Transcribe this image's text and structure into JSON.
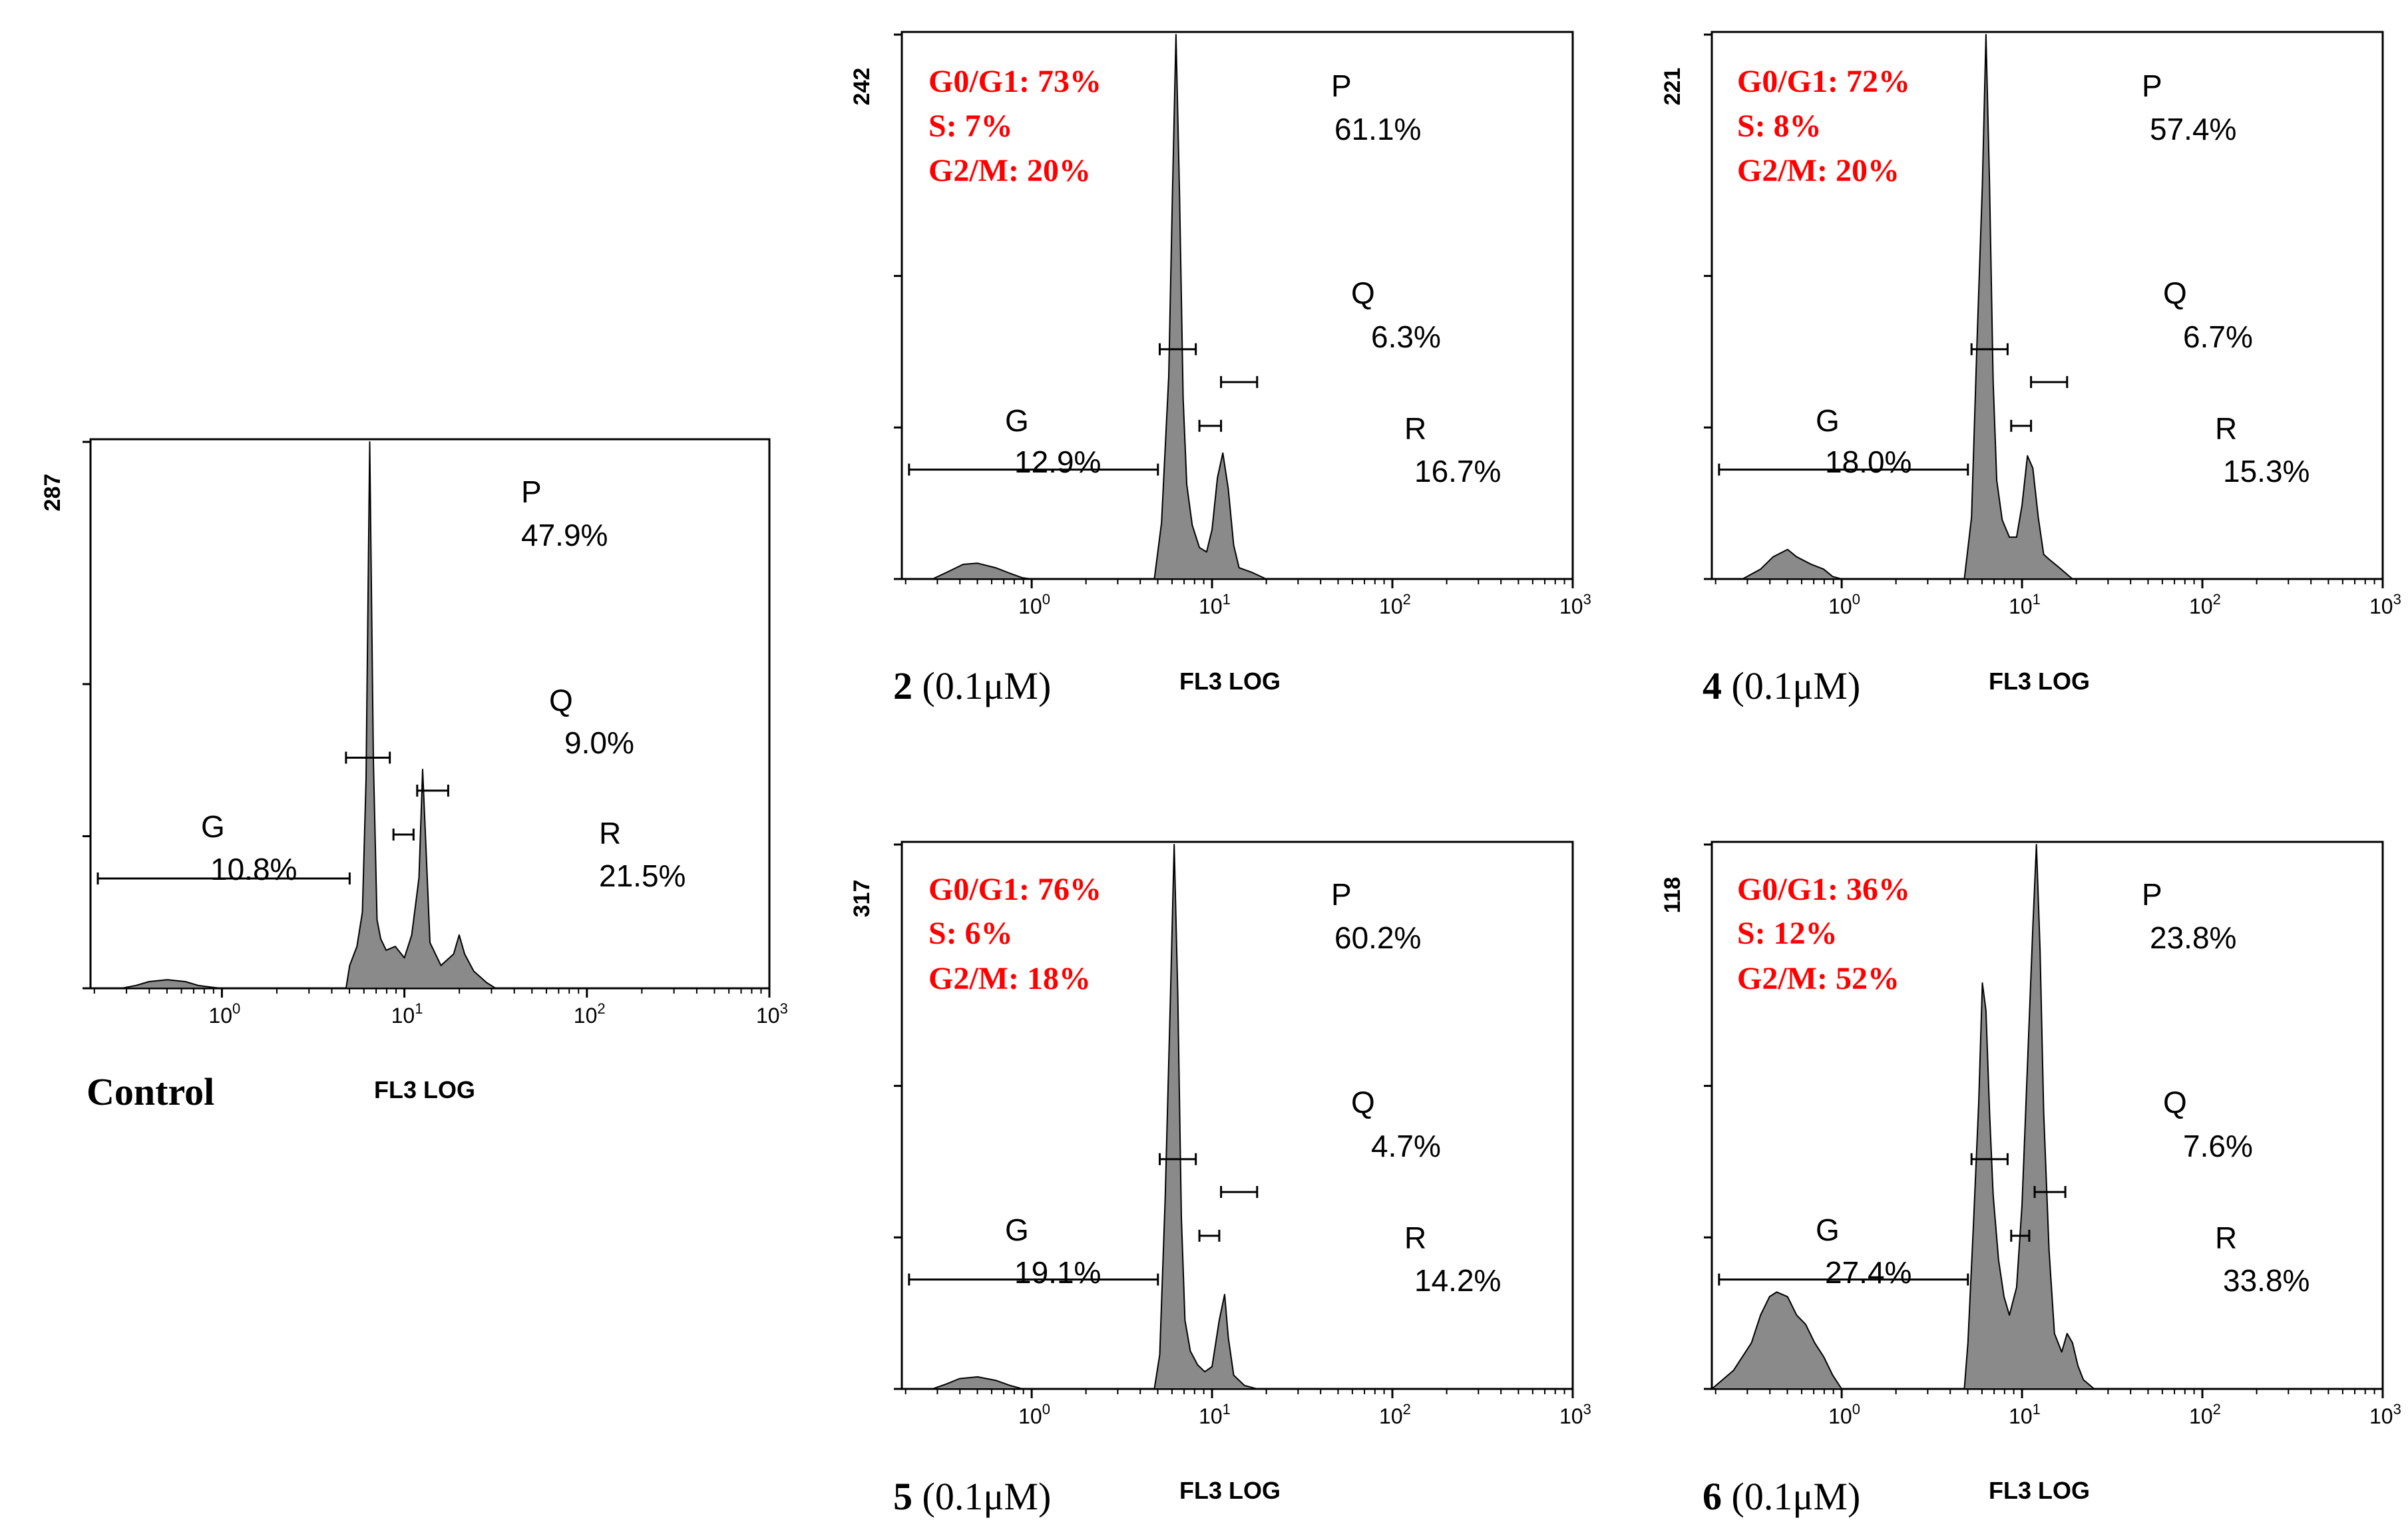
{
  "chart_data": [
    {
      "type": "area",
      "id": "control",
      "caption_bold": "Control",
      "caption_rest": "",
      "xlabel": "FL3 LOG",
      "ymax_label": "287",
      "ymax": 287,
      "xlim": [
        -0.72,
        3
      ],
      "x_tick_labels": [
        {
          "base": "10",
          "exp": "0"
        },
        {
          "base": "10",
          "exp": "1"
        },
        {
          "base": "10",
          "exp": "2"
        },
        {
          "base": "10",
          "exp": "3"
        }
      ],
      "phase_summary": [],
      "gates": [
        {
          "label": "P",
          "value": "47.9%"
        },
        {
          "label": "Q",
          "value": "9.0%"
        },
        {
          "label": "G",
          "value": "10.8%"
        },
        {
          "label": "R",
          "value": "21.5%"
        }
      ],
      "gate_ranges": {
        "G": [
          -0.68,
          0.7
        ],
        "P": [
          0.68,
          0.92
        ],
        "Q": [
          0.94,
          1.05
        ],
        "R": [
          1.07,
          1.24
        ]
      },
      "histogram": [
        [
          -0.72,
          0
        ],
        [
          -0.55,
          0
        ],
        [
          -0.47,
          1.5
        ],
        [
          -0.4,
          3.5
        ],
        [
          -0.3,
          4.5
        ],
        [
          -0.2,
          3.5
        ],
        [
          -0.13,
          1.5
        ],
        [
          -0.05,
          0.5
        ],
        [
          0.0,
          0
        ],
        [
          0.68,
          0
        ],
        [
          0.7,
          12
        ],
        [
          0.74,
          22
        ],
        [
          0.77,
          40
        ],
        [
          0.79,
          110
        ],
        [
          0.81,
          287
        ],
        [
          0.83,
          120
        ],
        [
          0.85,
          36
        ],
        [
          0.87,
          26
        ],
        [
          0.9,
          20
        ],
        [
          0.95,
          22
        ],
        [
          1.0,
          16
        ],
        [
          1.04,
          28
        ],
        [
          1.08,
          58
        ],
        [
          1.1,
          115
        ],
        [
          1.12,
          70
        ],
        [
          1.14,
          24
        ],
        [
          1.2,
          12
        ],
        [
          1.27,
          18
        ],
        [
          1.3,
          28
        ],
        [
          1.33,
          18
        ],
        [
          1.38,
          9
        ],
        [
          1.45,
          3
        ],
        [
          1.5,
          0
        ],
        [
          3,
          0
        ]
      ]
    },
    {
      "type": "area",
      "id": "compound-2",
      "caption_bold": "2",
      "caption_rest": " (0.1μM)",
      "xlabel": "FL3 LOG",
      "ymax_label": "242",
      "ymax": 242,
      "xlim": [
        -0.72,
        3
      ],
      "x_tick_labels": [
        {
          "base": "10",
          "exp": "0"
        },
        {
          "base": "10",
          "exp": "1"
        },
        {
          "base": "10",
          "exp": "2"
        },
        {
          "base": "10",
          "exp": "3"
        }
      ],
      "phase_summary": [
        "G0/G1: 73%",
        "S: 7%",
        "G2/M: 20%"
      ],
      "gates": [
        {
          "label": "P",
          "value": "61.1%"
        },
        {
          "label": "Q",
          "value": "6.3%"
        },
        {
          "label": "G",
          "value": "12.9%"
        },
        {
          "label": "R",
          "value": "16.7%"
        }
      ],
      "gate_ranges": {
        "G": [
          -0.68,
          0.7
        ],
        "P": [
          0.71,
          0.91
        ],
        "Q": [
          0.93,
          1.05
        ],
        "R": [
          1.05,
          1.25
        ]
      },
      "histogram": [
        [
          -0.72,
          0
        ],
        [
          -0.55,
          0
        ],
        [
          -0.47,
          3
        ],
        [
          -0.38,
          6.5
        ],
        [
          -0.3,
          7
        ],
        [
          -0.2,
          5
        ],
        [
          -0.12,
          2.5
        ],
        [
          -0.05,
          0.5
        ],
        [
          0.0,
          0
        ],
        [
          0.68,
          0
        ],
        [
          0.72,
          25
        ],
        [
          0.76,
          90
        ],
        [
          0.78,
          170
        ],
        [
          0.8,
          242
        ],
        [
          0.82,
          170
        ],
        [
          0.84,
          80
        ],
        [
          0.86,
          42
        ],
        [
          0.89,
          24
        ],
        [
          0.93,
          14
        ],
        [
          0.97,
          12
        ],
        [
          1.0,
          22
        ],
        [
          1.03,
          45
        ],
        [
          1.06,
          56
        ],
        [
          1.09,
          40
        ],
        [
          1.12,
          15
        ],
        [
          1.15,
          5
        ],
        [
          1.22,
          3
        ],
        [
          1.3,
          0
        ],
        [
          3,
          0
        ]
      ]
    },
    {
      "type": "area",
      "id": "compound-4",
      "caption_bold": "4",
      "caption_rest": " (0.1μM)",
      "xlabel": "FL3 LOG",
      "ymax_label": "221",
      "ymax": 221,
      "xlim": [
        -0.72,
        3
      ],
      "x_tick_labels": [
        {
          "base": "10",
          "exp": "0"
        },
        {
          "base": "10",
          "exp": "1"
        },
        {
          "base": "10",
          "exp": "2"
        },
        {
          "base": "10",
          "exp": "3"
        }
      ],
      "phase_summary": [
        "G0/G1: 72%",
        "S: 8%",
        "G2/M: 20%"
      ],
      "gates": [
        {
          "label": "P",
          "value": "57.4%"
        },
        {
          "label": "Q",
          "value": "6.7%"
        },
        {
          "label": "G",
          "value": "18.0%"
        },
        {
          "label": "R",
          "value": "15.3%"
        }
      ],
      "gate_ranges": {
        "G": [
          -0.68,
          0.7
        ],
        "P": [
          0.72,
          0.92
        ],
        "Q": [
          0.94,
          1.05
        ],
        "R": [
          1.05,
          1.25
        ]
      },
      "histogram": [
        [
          -0.72,
          0
        ],
        [
          -0.55,
          0
        ],
        [
          -0.45,
          4
        ],
        [
          -0.38,
          9
        ],
        [
          -0.3,
          12
        ],
        [
          -0.25,
          9
        ],
        [
          -0.17,
          6
        ],
        [
          -0.1,
          4
        ],
        [
          -0.05,
          1
        ],
        [
          0.0,
          0
        ],
        [
          0.68,
          0
        ],
        [
          0.72,
          25
        ],
        [
          0.75,
          95
        ],
        [
          0.78,
          160
        ],
        [
          0.8,
          221
        ],
        [
          0.82,
          160
        ],
        [
          0.84,
          80
        ],
        [
          0.86,
          40
        ],
        [
          0.89,
          24
        ],
        [
          0.93,
          17
        ],
        [
          0.97,
          17
        ],
        [
          1.0,
          30
        ],
        [
          1.03,
          50
        ],
        [
          1.06,
          45
        ],
        [
          1.09,
          25
        ],
        [
          1.12,
          10
        ],
        [
          1.15,
          8
        ],
        [
          1.2,
          5
        ],
        [
          1.28,
          0
        ],
        [
          3,
          0
        ]
      ]
    },
    {
      "type": "area",
      "id": "compound-5",
      "caption_bold": "5",
      "caption_rest": " (0.1μM)",
      "xlabel": "FL3 LOG",
      "ymax_label": "317",
      "ymax": 317,
      "xlim": [
        -0.72,
        3
      ],
      "x_tick_labels": [
        {
          "base": "10",
          "exp": "0"
        },
        {
          "base": "10",
          "exp": "1"
        },
        {
          "base": "10",
          "exp": "2"
        },
        {
          "base": "10",
          "exp": "3"
        }
      ],
      "phase_summary": [
        "G0/G1: 76%",
        "S: 6%",
        "G2/M: 18%"
      ],
      "gates": [
        {
          "label": "P",
          "value": "60.2%"
        },
        {
          "label": "Q",
          "value": "4.7%"
        },
        {
          "label": "G",
          "value": "19.1%"
        },
        {
          "label": "R",
          "value": "14.2%"
        }
      ],
      "gate_ranges": {
        "G": [
          -0.68,
          0.7
        ],
        "P": [
          0.71,
          0.91
        ],
        "Q": [
          0.93,
          1.04
        ],
        "R": [
          1.05,
          1.25
        ]
      },
      "histogram": [
        [
          -0.72,
          0
        ],
        [
          -0.55,
          0
        ],
        [
          -0.47,
          3
        ],
        [
          -0.4,
          6
        ],
        [
          -0.3,
          7
        ],
        [
          -0.2,
          5
        ],
        [
          -0.12,
          2
        ],
        [
          -0.05,
          0
        ],
        [
          0.68,
          0
        ],
        [
          0.71,
          20
        ],
        [
          0.74,
          110
        ],
        [
          0.77,
          230
        ],
        [
          0.79,
          317
        ],
        [
          0.81,
          230
        ],
        [
          0.83,
          100
        ],
        [
          0.85,
          40
        ],
        [
          0.88,
          22
        ],
        [
          0.92,
          14
        ],
        [
          0.96,
          10
        ],
        [
          1.0,
          13
        ],
        [
          1.04,
          40
        ],
        [
          1.07,
          55
        ],
        [
          1.09,
          30
        ],
        [
          1.12,
          8
        ],
        [
          1.18,
          2
        ],
        [
          1.25,
          0
        ],
        [
          3,
          0
        ]
      ]
    },
    {
      "type": "area",
      "id": "compound-6",
      "caption_bold": "6",
      "caption_rest": " (0.1μM)",
      "xlabel": "FL3 LOG",
      "ymax_label": "118",
      "ymax": 118,
      "xlim": [
        -0.72,
        3
      ],
      "x_tick_labels": [
        {
          "base": "10",
          "exp": "0"
        },
        {
          "base": "10",
          "exp": "1"
        },
        {
          "base": "10",
          "exp": "2"
        },
        {
          "base": "10",
          "exp": "3"
        }
      ],
      "phase_summary": [
        "G0/G1: 36%",
        "S: 12%",
        "G2/M: 52%"
      ],
      "gates": [
        {
          "label": "P",
          "value": "23.8%"
        },
        {
          "label": "Q",
          "value": "7.6%"
        },
        {
          "label": "G",
          "value": "27.4%"
        },
        {
          "label": "R",
          "value": "33.8%"
        }
      ],
      "gate_ranges": {
        "G": [
          -0.68,
          0.7
        ],
        "P": [
          0.72,
          0.92
        ],
        "Q": [
          0.94,
          1.04
        ],
        "R": [
          1.07,
          1.24
        ]
      },
      "histogram": [
        [
          -0.72,
          0
        ],
        [
          -0.66,
          2
        ],
        [
          -0.6,
          4
        ],
        [
          -0.5,
          10
        ],
        [
          -0.45,
          16
        ],
        [
          -0.4,
          20
        ],
        [
          -0.36,
          21
        ],
        [
          -0.3,
          20
        ],
        [
          -0.25,
          16
        ],
        [
          -0.2,
          14
        ],
        [
          -0.15,
          10
        ],
        [
          -0.1,
          7
        ],
        [
          -0.05,
          3
        ],
        [
          0.0,
          0
        ],
        [
          0.68,
          0
        ],
        [
          0.7,
          10
        ],
        [
          0.73,
          35
        ],
        [
          0.76,
          62
        ],
        [
          0.78,
          88
        ],
        [
          0.8,
          82
        ],
        [
          0.82,
          60
        ],
        [
          0.84,
          42
        ],
        [
          0.87,
          28
        ],
        [
          0.9,
          20
        ],
        [
          0.93,
          16
        ],
        [
          0.97,
          22
        ],
        [
          1.0,
          40
        ],
        [
          1.03,
          70
        ],
        [
          1.06,
          100
        ],
        [
          1.08,
          118
        ],
        [
          1.1,
          95
        ],
        [
          1.12,
          60
        ],
        [
          1.15,
          30
        ],
        [
          1.18,
          12
        ],
        [
          1.22,
          8
        ],
        [
          1.25,
          12
        ],
        [
          1.28,
          10
        ],
        [
          1.31,
          5
        ],
        [
          1.34,
          2
        ],
        [
          1.4,
          0
        ],
        [
          3,
          0
        ]
      ]
    }
  ]
}
